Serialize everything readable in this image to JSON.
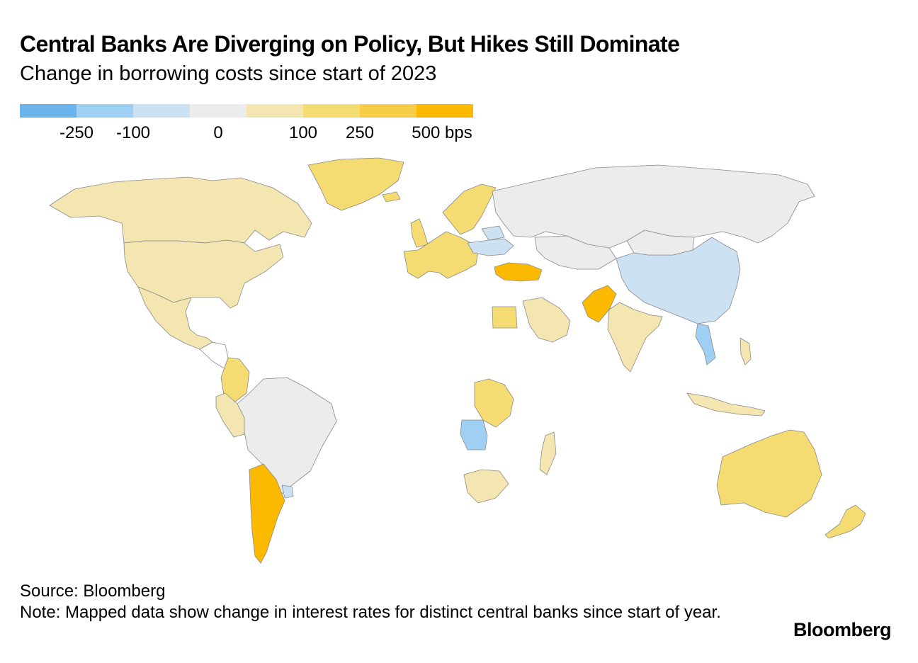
{
  "title": "Central Banks Are Diverging on Policy, But Hikes Still Dominate",
  "subtitle": "Change in borrowing costs since start of 2023",
  "legend": {
    "colors": [
      "#6cb4ec",
      "#9fd0f4",
      "#cce2f3",
      "#ececec",
      "#f4e6b0",
      "#f4dc72",
      "#f6cc48",
      "#fbb900"
    ],
    "labels": [
      "-250",
      "-100",
      "0",
      "100",
      "250",
      "500 bps"
    ],
    "no_data_color": "#ffffff"
  },
  "chart_data": {
    "type": "choropleth",
    "title": "Central Banks Are Diverging on Policy, But Hikes Still Dominate",
    "subtitle": "Change in borrowing costs since start of 2023",
    "unit": "bps",
    "legend_breaks": [
      -250,
      -100,
      0,
      100,
      250,
      500
    ],
    "regions": [
      {
        "name": "Canada",
        "bucket": "0 to 100"
      },
      {
        "name": "United States",
        "bucket": "0 to 100"
      },
      {
        "name": "Mexico",
        "bucket": "0 to 100"
      },
      {
        "name": "Central America",
        "bucket": "no data"
      },
      {
        "name": "Colombia",
        "bucket": "100 to 250"
      },
      {
        "name": "Peru",
        "bucket": "0 to 100"
      },
      {
        "name": "Brazil",
        "bucket": "0"
      },
      {
        "name": "Uruguay",
        "bucket": "-100 to 0"
      },
      {
        "name": "Argentina",
        "bucket": "above 250"
      },
      {
        "name": "Greenland",
        "bucket": "100 to 250"
      },
      {
        "name": "Iceland",
        "bucket": "100 to 250"
      },
      {
        "name": "United Kingdom",
        "bucket": "100 to 250"
      },
      {
        "name": "Euro Area",
        "bucket": "100 to 250"
      },
      {
        "name": "Scandinavia",
        "bucket": "100 to 250"
      },
      {
        "name": "Belarus",
        "bucket": "-100 to 0"
      },
      {
        "name": "Ukraine",
        "bucket": "-100 to 0"
      },
      {
        "name": "Turkey",
        "bucket": "above 250"
      },
      {
        "name": "Russia",
        "bucket": "0"
      },
      {
        "name": "Kazakhstan",
        "bucket": "0"
      },
      {
        "name": "China",
        "bucket": "-100 to 0"
      },
      {
        "name": "Mongolia",
        "bucket": "0"
      },
      {
        "name": "Pakistan",
        "bucket": "above 250"
      },
      {
        "name": "India",
        "bucket": "0 to 100"
      },
      {
        "name": "Egypt",
        "bucket": "100 to 250"
      },
      {
        "name": "Saudi Arabia",
        "bucket": "0 to 100"
      },
      {
        "name": "Vietnam",
        "bucket": "-250 to -100"
      },
      {
        "name": "Indonesia",
        "bucket": "0 to 100"
      },
      {
        "name": "Philippines",
        "bucket": "0 to 100"
      },
      {
        "name": "DR Congo",
        "bucket": "100 to 250"
      },
      {
        "name": "Angola",
        "bucket": "-250 to -100"
      },
      {
        "name": "South Africa",
        "bucket": "0 to 100"
      },
      {
        "name": "Madagascar",
        "bucket": "0 to 100"
      },
      {
        "name": "Australia",
        "bucket": "100 to 250"
      },
      {
        "name": "New Zealand",
        "bucket": "100 to 250"
      }
    ]
  },
  "footer": {
    "source": "Source: Bloomberg",
    "note": "Note: Mapped data show change in interest rates for distinct central banks since start of year."
  },
  "brand": "Bloomberg"
}
